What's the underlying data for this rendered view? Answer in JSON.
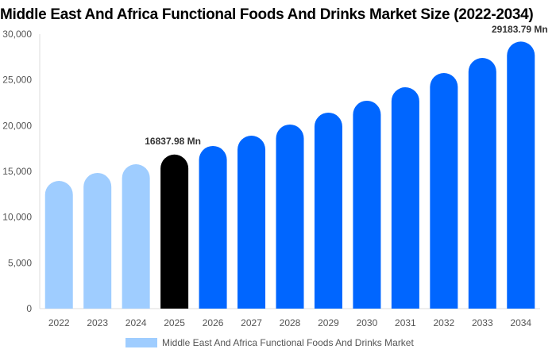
{
  "chart_data": {
    "type": "bar",
    "title": "Middle East And Africa Functional Foods And Drinks Market Size (2022-2034)",
    "categories": [
      "2022",
      "2023",
      "2024",
      "2025",
      "2026",
      "2027",
      "2028",
      "2029",
      "2030",
      "2031",
      "2032",
      "2033",
      "2034"
    ],
    "series": [
      {
        "name": "Middle East And Africa Functional Foods And Drinks Market",
        "values": [
          13960,
          14830,
          15780,
          16837.98,
          17780,
          18900,
          20120,
          21420,
          22720,
          24190,
          25750,
          27400,
          29183.79
        ]
      }
    ],
    "data_labels": [
      {
        "category": "2025",
        "text": "16837.98 Mn"
      },
      {
        "category": "2034",
        "text": "29183.79 Mn"
      }
    ],
    "yticks": [
      "0",
      "5,000",
      "10,000",
      "15,000",
      "20,000",
      "25,000",
      "30,000"
    ],
    "ylim": [
      0,
      30000
    ],
    "grid": false,
    "legend_placement": "bottom",
    "colors": {
      "historical": "#9fcdff",
      "current": "#000000",
      "forecast": "#0066ff"
    }
  }
}
